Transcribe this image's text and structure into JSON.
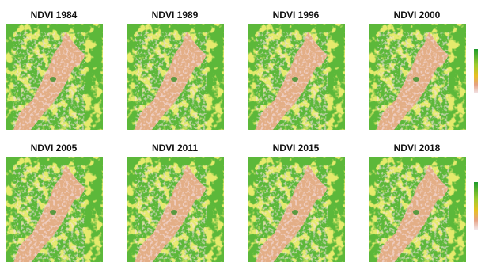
{
  "panels": [
    {
      "title": "NDVI 1984"
    },
    {
      "title": "NDVI 1989"
    },
    {
      "title": "NDVI 1996"
    },
    {
      "title": "NDVI 2000"
    },
    {
      "title": "NDVI 2005"
    },
    {
      "title": "NDVI 2011"
    },
    {
      "title": "NDVI 2015"
    },
    {
      "title": "NDVI 2018"
    }
  ]
}
